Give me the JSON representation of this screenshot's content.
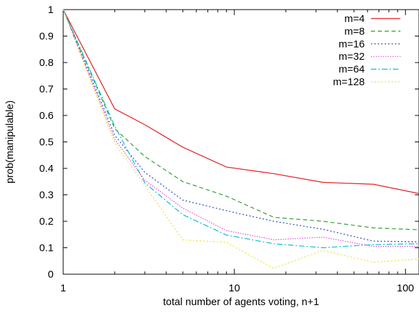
{
  "chart_data": {
    "type": "line",
    "title": "",
    "xlabel": "total number of agents voting, n+1",
    "ylabel": "prob(manipulable)",
    "xscale": "log",
    "xlim": [
      1,
      120
    ],
    "ylim": [
      0,
      1
    ],
    "xticks": [
      1,
      10,
      100
    ],
    "xtick_labels": [
      "1",
      "10",
      "100"
    ],
    "yticks": [
      0,
      0.1,
      0.2,
      0.3,
      0.4,
      0.5,
      0.6,
      0.7,
      0.8,
      0.9,
      1
    ],
    "ytick_labels": [
      "0",
      "0.1",
      "0.2",
      "0.3",
      "0.4",
      "0.5",
      "0.6",
      "0.7",
      "0.8",
      "0.9",
      "1"
    ],
    "grid": false,
    "legend_position": "top-right",
    "x": [
      1,
      2,
      3,
      5,
      9,
      17,
      33,
      65,
      120
    ],
    "series": [
      {
        "name": "m=4",
        "color": "#e41a1c",
        "dash": "solid",
        "values": [
          1.0,
          0.625,
          0.565,
          0.48,
          0.405,
          0.38,
          0.347,
          0.34,
          0.305
        ]
      },
      {
        "name": "m=8",
        "color": "#2ca02c",
        "dash": "dashed",
        "values": [
          1.0,
          0.55,
          0.445,
          0.35,
          0.295,
          0.215,
          0.2,
          0.175,
          0.168
        ]
      },
      {
        "name": "m=16",
        "color": "#1f3fbf",
        "dash": "dotted",
        "values": [
          1.0,
          0.525,
          0.385,
          0.28,
          0.24,
          0.2,
          0.17,
          0.125,
          0.122
        ]
      },
      {
        "name": "m=32",
        "color": "#e040d0",
        "dash": "fine-dotted",
        "values": [
          1.0,
          0.51,
          0.355,
          0.25,
          0.165,
          0.13,
          0.14,
          0.105,
          0.105
        ]
      },
      {
        "name": "m=64",
        "color": "#00c0d0",
        "dash": "dash-dot",
        "values": [
          1.0,
          0.56,
          0.345,
          0.225,
          0.148,
          0.115,
          0.1,
          0.112,
          0.115
        ]
      },
      {
        "name": "m=128",
        "color": "#f0e020",
        "dash": "dotted",
        "values": [
          1.0,
          0.495,
          0.335,
          0.13,
          0.12,
          0.022,
          0.09,
          0.045,
          0.058
        ]
      }
    ]
  }
}
